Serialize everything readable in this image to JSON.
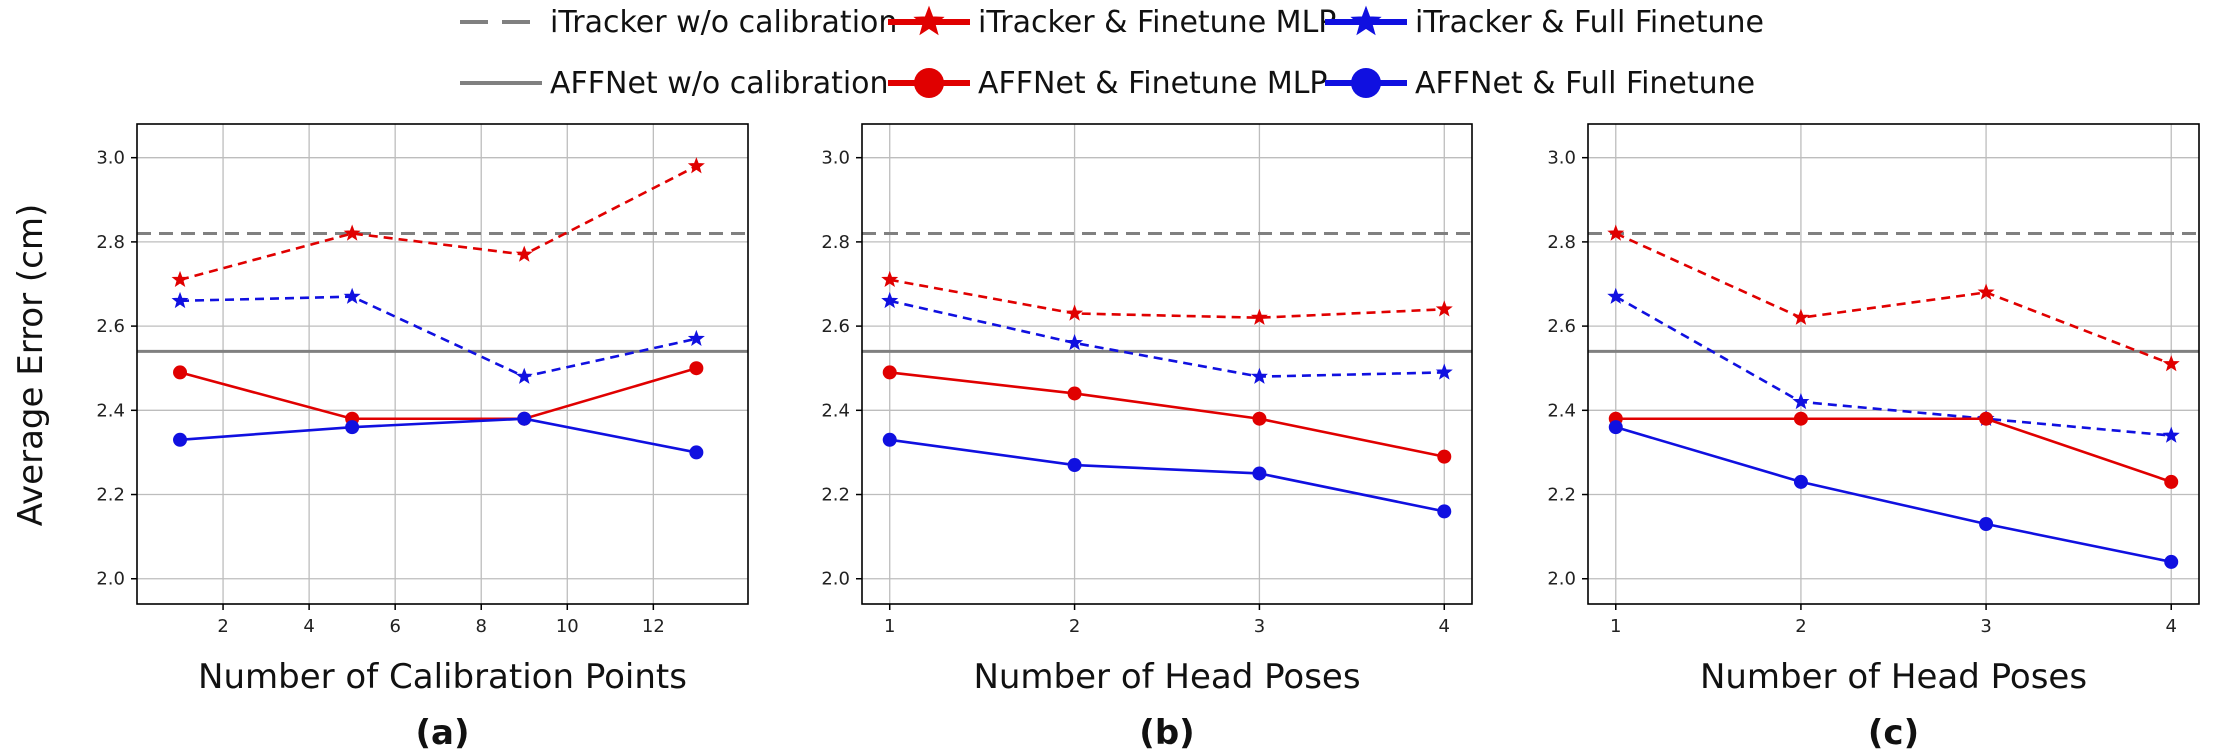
{
  "legend": {
    "entries": [
      {
        "key": "itracker_nocal",
        "label": "iTracker w/o calibration",
        "color": "#808080",
        "dash": true,
        "marker": "none"
      },
      {
        "key": "itracker_mlp",
        "label": "iTracker & Finetune MLP",
        "color": "#e00000",
        "dash": false,
        "marker": "star"
      },
      {
        "key": "itracker_full",
        "label": "iTracker & Full Finetune",
        "color": "#1010e0",
        "dash": false,
        "marker": "star"
      },
      {
        "key": "affnet_nocal",
        "label": "AFFNet w/o calibration",
        "color": "#808080",
        "dash": false,
        "marker": "none"
      },
      {
        "key": "affnet_mlp",
        "label": "AFFNet & Finetune MLP",
        "color": "#e00000",
        "dash": false,
        "marker": "circle"
      },
      {
        "key": "affnet_full",
        "label": "AFFNet & Full Finetune",
        "color": "#1010e0",
        "dash": false,
        "marker": "circle"
      }
    ]
  },
  "ylabel": "Average Error (cm)",
  "chart_data": [
    {
      "type": "line",
      "panel": "(a)",
      "xlabel": "Number of Calibration Points",
      "xlim": [
        0.0,
        14.2
      ],
      "ylim": [
        1.94,
        3.08
      ],
      "xticks": [
        2,
        4,
        6,
        8,
        10,
        12
      ],
      "yticks": [
        2.0,
        2.2,
        2.4,
        2.6,
        2.8,
        3.0
      ],
      "grid": true,
      "hlines": [
        {
          "name": "iTracker w/o calibration",
          "y": 2.82,
          "color": "#808080",
          "dash": true
        },
        {
          "name": "AFFNet w/o calibration",
          "y": 2.54,
          "color": "#808080",
          "dash": false
        }
      ],
      "x": [
        1,
        5,
        9,
        13
      ],
      "series": [
        {
          "name": "iTracker & Finetune MLP",
          "values": [
            2.71,
            2.82,
            2.77,
            2.98
          ],
          "color": "#e00000",
          "dash": true,
          "marker": "star"
        },
        {
          "name": "iTracker & Full Finetune",
          "values": [
            2.66,
            2.67,
            2.48,
            2.57
          ],
          "color": "#1010e0",
          "dash": true,
          "marker": "star"
        },
        {
          "name": "AFFNet & Finetune MLP",
          "values": [
            2.49,
            2.38,
            2.38,
            2.5
          ],
          "color": "#e00000",
          "dash": false,
          "marker": "circle"
        },
        {
          "name": "AFFNet & Full Finetune",
          "values": [
            2.33,
            2.36,
            2.38,
            2.3
          ],
          "color": "#1010e0",
          "dash": false,
          "marker": "circle"
        }
      ]
    },
    {
      "type": "line",
      "panel": "(b)",
      "xlabel": "Number of Head Poses",
      "xlim": [
        0.85,
        4.15
      ],
      "ylim": [
        1.94,
        3.08
      ],
      "xticks": [
        1,
        2,
        3,
        4
      ],
      "yticks": [
        2.0,
        2.2,
        2.4,
        2.6,
        2.8,
        3.0
      ],
      "grid": true,
      "hlines": [
        {
          "name": "iTracker w/o calibration",
          "y": 2.82,
          "color": "#808080",
          "dash": true
        },
        {
          "name": "AFFNet w/o calibration",
          "y": 2.54,
          "color": "#808080",
          "dash": false
        }
      ],
      "x": [
        1,
        2,
        3,
        4
      ],
      "series": [
        {
          "name": "iTracker & Finetune MLP",
          "values": [
            2.71,
            2.63,
            2.62,
            2.64
          ],
          "color": "#e00000",
          "dash": true,
          "marker": "star"
        },
        {
          "name": "iTracker & Full Finetune",
          "values": [
            2.66,
            2.56,
            2.48,
            2.49
          ],
          "color": "#1010e0",
          "dash": true,
          "marker": "star"
        },
        {
          "name": "AFFNet & Finetune MLP",
          "values": [
            2.49,
            2.44,
            2.38,
            2.29
          ],
          "color": "#e00000",
          "dash": false,
          "marker": "circle"
        },
        {
          "name": "AFFNet & Full Finetune",
          "values": [
            2.33,
            2.27,
            2.25,
            2.16
          ],
          "color": "#1010e0",
          "dash": false,
          "marker": "circle"
        }
      ]
    },
    {
      "type": "line",
      "panel": "(c)",
      "xlabel": "Number of Head Poses",
      "xlim": [
        0.85,
        4.15
      ],
      "ylim": [
        1.94,
        3.08
      ],
      "xticks": [
        1,
        2,
        3,
        4
      ],
      "yticks": [
        2.0,
        2.2,
        2.4,
        2.6,
        2.8,
        3.0
      ],
      "grid": true,
      "hlines": [
        {
          "name": "iTracker w/o calibration",
          "y": 2.82,
          "color": "#808080",
          "dash": true
        },
        {
          "name": "AFFNet w/o calibration",
          "y": 2.54,
          "color": "#808080",
          "dash": false
        }
      ],
      "x": [
        1,
        2,
        3,
        4
      ],
      "series": [
        {
          "name": "iTracker & Finetune MLP",
          "values": [
            2.82,
            2.62,
            2.68,
            2.51
          ],
          "color": "#e00000",
          "dash": true,
          "marker": "star"
        },
        {
          "name": "iTracker & Full Finetune",
          "values": [
            2.67,
            2.42,
            2.38,
            2.34
          ],
          "color": "#1010e0",
          "dash": true,
          "marker": "star"
        },
        {
          "name": "AFFNet & Finetune MLP",
          "values": [
            2.38,
            2.38,
            2.38,
            2.23
          ],
          "color": "#e00000",
          "dash": false,
          "marker": "circle"
        },
        {
          "name": "AFFNet & Full Finetune",
          "values": [
            2.36,
            2.23,
            2.13,
            2.04
          ],
          "color": "#1010e0",
          "dash": false,
          "marker": "circle"
        }
      ]
    }
  ]
}
